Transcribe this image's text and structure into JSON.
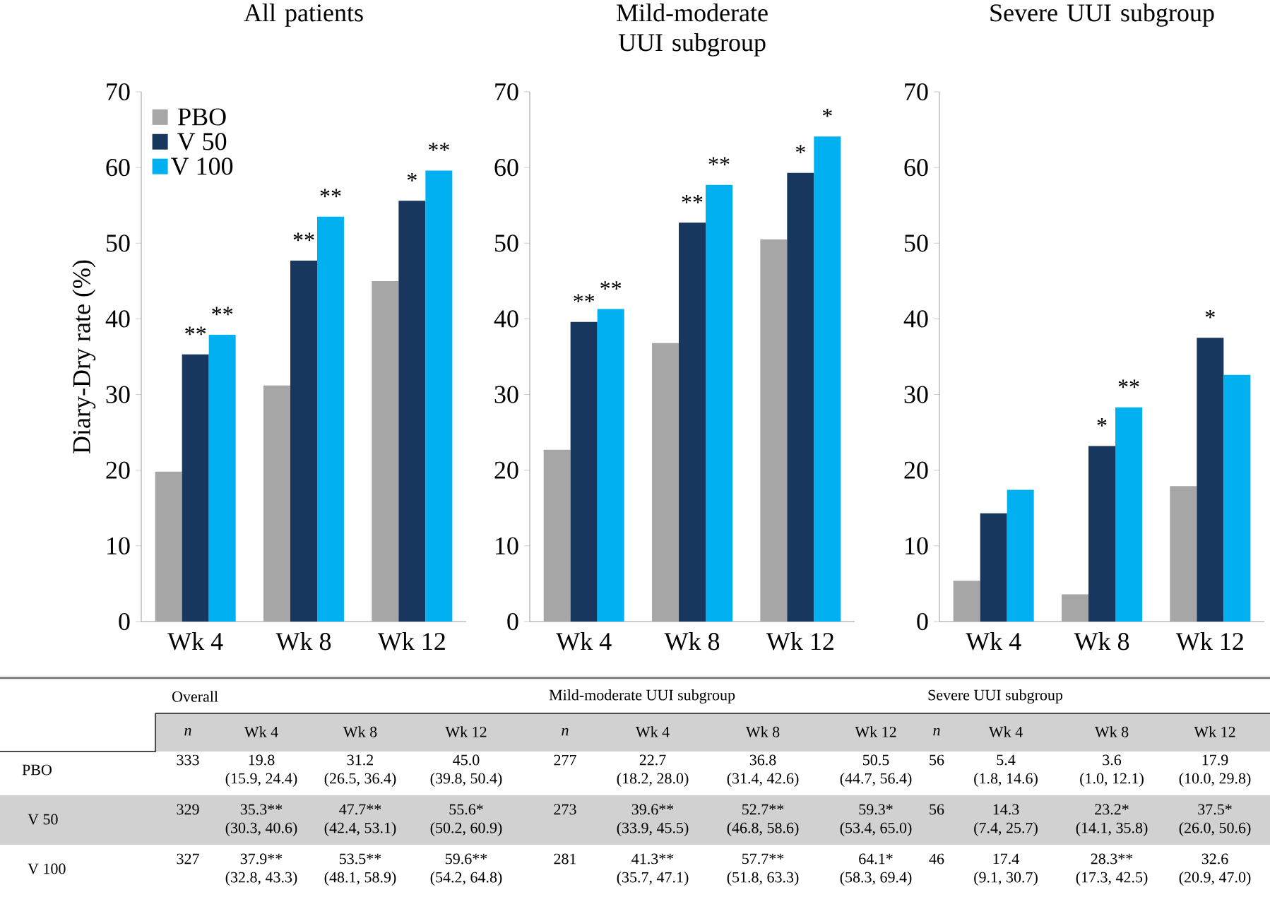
{
  "chart_data": [
    {
      "type": "bar",
      "title": "All patients",
      "ylabel": "Diary-Dry rate (%)",
      "categories": [
        "Wk 4",
        "Wk 8",
        "Wk 12"
      ],
      "ylim": [
        0,
        70
      ],
      "yticks": [
        0,
        10,
        20,
        30,
        40,
        50,
        60,
        70
      ],
      "legend": "top left",
      "series": [
        {
          "name": "PBO",
          "color": "#a6a6a6",
          "values": [
            19.8,
            31.2,
            45.0
          ]
        },
        {
          "name": "V 50",
          "color": "#17375e",
          "values": [
            35.3,
            47.7,
            55.6
          ],
          "value_labels": [
            "**",
            "**",
            "*"
          ]
        },
        {
          "name": "V 100",
          "color": "#00b0f0",
          "values": [
            37.9,
            53.5,
            59.6
          ],
          "value_labels": [
            "**",
            "**",
            "**"
          ]
        }
      ],
      "annotations": [
        "Overall",
        "n",
        "333",
        "329",
        "327",
        "19.8",
        "(15.9, 24.4)",
        "31.2",
        "(26.5, 36.4)",
        "45.0",
        "(39.8, 50.4)",
        "35.3**",
        "(30.3, 40.6)",
        "47.7**",
        "(42.4, 53.1)",
        "55.6*",
        "(50.2, 60.9)",
        "37.9**",
        "(32.8, 43.3)",
        "53.5**",
        "(48.1, 58.9)",
        "59.6**",
        "(54.2, 64.8)"
      ]
    },
    {
      "type": "bar",
      "title": "Mild-moderate UUI subgroup",
      "categories": [
        "Wk 4",
        "Wk 8",
        "Wk 12"
      ],
      "ylim": [
        0,
        70
      ],
      "yticks": [
        0,
        10,
        20,
        30,
        40,
        50,
        60,
        70
      ],
      "series": [
        {
          "color": "#a6a6a6",
          "values": [
            22.7,
            36.8,
            50.5
          ]
        },
        {
          "color": "#17375e",
          "values": [
            39.6,
            52.7,
            59.3
          ],
          "value_labels": [
            "**",
            "**",
            "*"
          ]
        },
        {
          "color": "#00b0f0",
          "values": [
            41.3,
            57.7,
            64.1
          ],
          "value_labels": [
            "**",
            "**",
            "*"
          ]
        }
      ],
      "annotations": [
        "Mild-moderate UUI subgroup",
        "n",
        "277",
        "273",
        "281",
        "22.7",
        "(18.2, 28.0)",
        "36.8",
        "(31.4, 42.6)",
        "50.5",
        "(44.7, 56.4)",
        "39.6**",
        "(33.9, 45.5)",
        "52.7**",
        "(46.8, 58.6)",
        "59.3*",
        "(53.4, 65.0)",
        "41.3**",
        "(35.7, 47.1)",
        "57.7**",
        "(51.8, 63.3)",
        "64.1*",
        "(58.3, 69.4)"
      ]
    },
    {
      "type": "bar",
      "title": "Severe UUI subgroup",
      "categories": [
        "Wk 4",
        "Wk 8",
        "Wk 12"
      ],
      "ylim": [
        0,
        70
      ],
      "yticks": [
        0,
        10,
        20,
        30,
        40,
        50,
        60,
        70
      ],
      "series": [
        {
          "color": "#a6a6a6",
          "values": [
            5.4,
            3.6,
            17.9
          ]
        },
        {
          "color": "#17375e",
          "values": [
            14.3,
            23.2,
            37.5
          ],
          "value_labels": [
            null,
            "*",
            "*"
          ]
        },
        {
          "color": "#00b0f0",
          "values": [
            17.4,
            28.3,
            32.6
          ],
          "value_labels": [
            null,
            "**",
            null
          ]
        }
      ],
      "annotations": [
        "Severe UUI subgroup",
        "n",
        "56",
        "56",
        "46",
        "5.4",
        "(1.8, 14.6)",
        "3.6",
        "(1.0, 12.1)",
        "17.9",
        "(10.0, 29.8)",
        "14.3",
        "(7.4, 25.7)",
        "23.2*",
        "(14.1, 35.8)",
        "37.5*",
        "(26.0, 50.6)",
        "17.4",
        "(9.1, 30.7)",
        "28.3**",
        "(17.3, 42.5)",
        "32.6",
        "(20.9, 47.0)"
      ]
    }
  ]
}
